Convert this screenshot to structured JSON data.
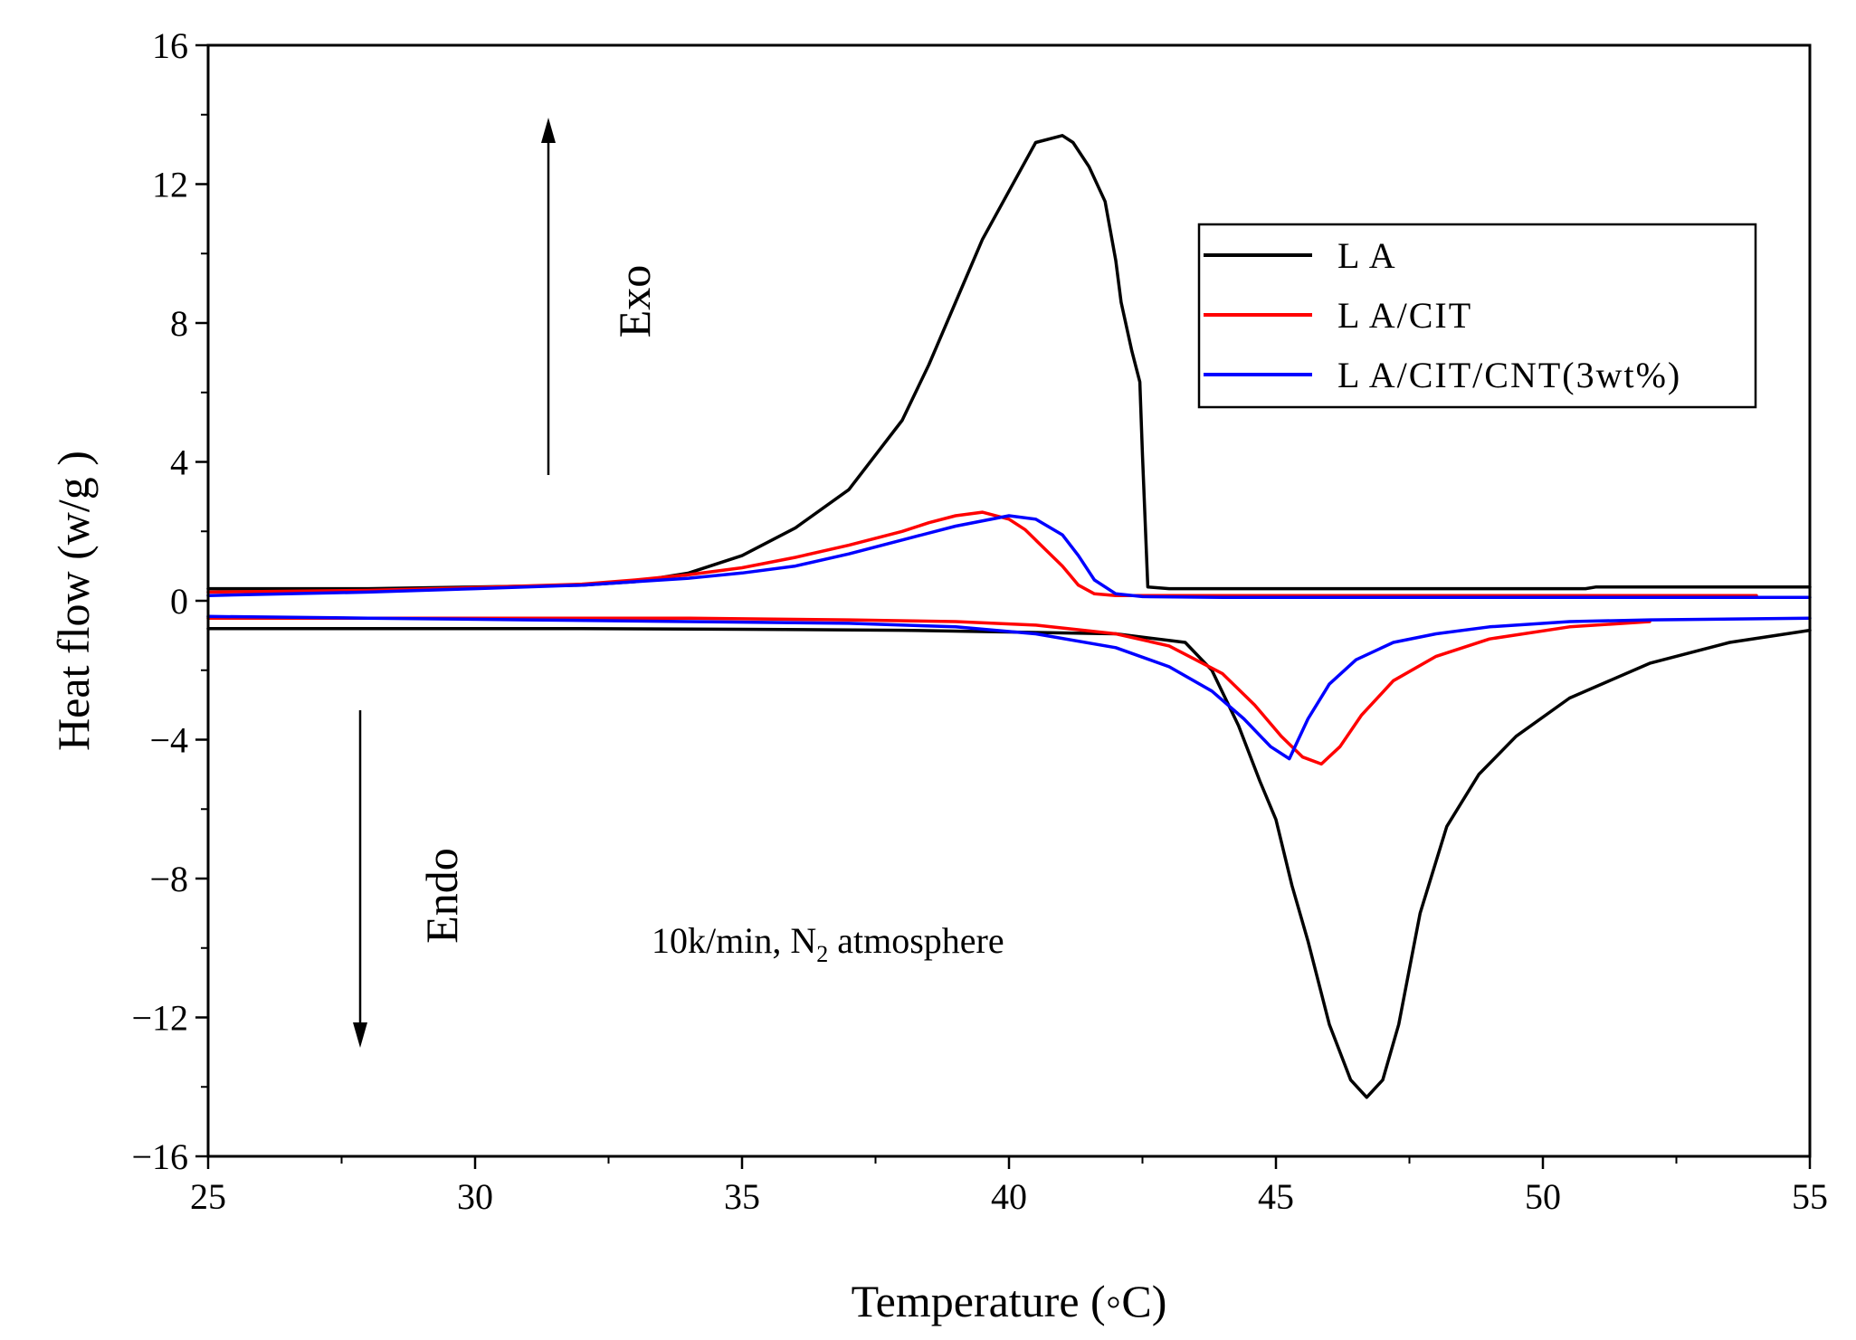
{
  "chart_data": {
    "type": "line",
    "xlabel": "Temperature (◦C)",
    "ylabel": "Heat flow (w/g )",
    "xlim": [
      25,
      55
    ],
    "ylim": [
      -16,
      16
    ],
    "x_ticks": [
      "25",
      "30",
      "35",
      "40",
      "45",
      "50",
      "55"
    ],
    "y_ticks": [
      "16",
      "12",
      "8",
      "4",
      "0",
      "−4",
      "−8",
      "−12",
      "−16"
    ],
    "x_tick_values": [
      25,
      30,
      35,
      40,
      45,
      50,
      55
    ],
    "y_tick_values": [
      16,
      12,
      8,
      4,
      0,
      -4,
      -8,
      -12,
      -16
    ],
    "grid": false,
    "legend_position": "top-right",
    "annotations": {
      "exo": "Exo",
      "endo": "Endo",
      "condition_prefix": "10k/min, N",
      "condition_subscript": "2",
      "condition_suffix": " atmosphere"
    },
    "series": [
      {
        "name": "L A",
        "color": "#000000",
        "segments": [
          {
            "x": [
              25,
              28,
              30,
              32,
              33,
              34,
              35,
              36,
              37,
              38,
              38.5,
              39,
              39.5,
              40,
              40.5,
              41,
              41.2,
              41.5,
              41.8,
              42.0,
              42.1,
              42.3,
              42.45,
              42.5,
              42.6,
              43,
              45,
              48,
              50,
              50.8,
              51,
              53,
              55
            ],
            "y": [
              0.35,
              0.35,
              0.4,
              0.45,
              0.55,
              0.8,
              1.3,
              2.1,
              3.2,
              5.2,
              6.8,
              8.6,
              10.4,
              11.8,
              13.2,
              13.4,
              13.2,
              12.5,
              11.5,
              9.8,
              8.6,
              7.2,
              6.3,
              4.2,
              0.4,
              0.35,
              0.35,
              0.35,
              0.35,
              0.35,
              0.4,
              0.4,
              0.4
            ]
          },
          {
            "x": [
              25,
              28,
              32,
              35,
              38,
              40,
              42,
              43.3,
              43.8,
              44.3,
              44.7,
              45.0,
              45.3,
              45.6,
              46.0,
              46.4,
              46.7,
              47.0,
              47.3,
              47.7,
              48.2,
              48.8,
              49.5,
              50.5,
              52,
              53.5,
              55
            ],
            "y": [
              -0.8,
              -0.8,
              -0.8,
              -0.82,
              -0.85,
              -0.9,
              -0.95,
              -1.2,
              -2.0,
              -3.6,
              -5.2,
              -6.3,
              -8.2,
              -9.8,
              -12.2,
              -13.8,
              -14.3,
              -13.8,
              -12.2,
              -9.0,
              -6.5,
              -5.0,
              -3.9,
              -2.8,
              -1.8,
              -1.2,
              -0.85
            ]
          }
        ]
      },
      {
        "name": "L A/CIT",
        "color": "#ff0000",
        "segments": [
          {
            "x": [
              25,
              28,
              30,
              32,
              33,
              34,
              35,
              36,
              37,
              38,
              38.5,
              39,
              39.5,
              40,
              40.3,
              40.6,
              41,
              41.3,
              41.6,
              42,
              44,
              48,
              52,
              54
            ],
            "y": [
              0.25,
              0.3,
              0.38,
              0.48,
              0.6,
              0.75,
              0.95,
              1.25,
              1.6,
              2.0,
              2.25,
              2.45,
              2.55,
              2.35,
              2.05,
              1.6,
              1.0,
              0.45,
              0.2,
              0.15,
              0.15,
              0.15,
              0.15,
              0.15
            ]
          },
          {
            "x": [
              25,
              28,
              31,
              34,
              37,
              39,
              40.5,
              42,
              43,
              44,
              44.6,
              45.1,
              45.5,
              45.85,
              46.2,
              46.6,
              47.2,
              48,
              49,
              50.5,
              52
            ],
            "y": [
              -0.5,
              -0.5,
              -0.5,
              -0.5,
              -0.55,
              -0.6,
              -0.7,
              -0.95,
              -1.3,
              -2.1,
              -3.0,
              -3.9,
              -4.5,
              -4.7,
              -4.2,
              -3.3,
              -2.3,
              -1.6,
              -1.1,
              -0.75,
              -0.6
            ]
          }
        ]
      },
      {
        "name": "L A/CIT/CNT(3wt%)",
        "color": "#0000ff",
        "segments": [
          {
            "x": [
              25,
              28,
              30,
              32,
              33,
              34,
              35,
              36,
              37,
              38,
              39,
              40,
              40.5,
              41,
              41.3,
              41.6,
              42,
              42.5,
              44,
              48,
              52,
              55
            ],
            "y": [
              0.15,
              0.25,
              0.35,
              0.45,
              0.55,
              0.65,
              0.8,
              1.0,
              1.35,
              1.75,
              2.15,
              2.45,
              2.35,
              1.9,
              1.3,
              0.6,
              0.2,
              0.12,
              0.1,
              0.1,
              0.1,
              0.1
            ]
          },
          {
            "x": [
              25,
              28,
              31,
              34,
              37,
              39,
              40.5,
              42,
              43,
              43.8,
              44.4,
              44.9,
              45.25,
              45.6,
              46,
              46.5,
              47.2,
              48,
              49,
              50.5,
              52,
              55
            ],
            "y": [
              -0.45,
              -0.5,
              -0.55,
              -0.6,
              -0.65,
              -0.75,
              -0.95,
              -1.35,
              -1.9,
              -2.6,
              -3.4,
              -4.2,
              -4.55,
              -3.4,
              -2.4,
              -1.7,
              -1.2,
              -0.95,
              -0.75,
              -0.6,
              -0.55,
              -0.5
            ]
          }
        ]
      }
    ]
  }
}
